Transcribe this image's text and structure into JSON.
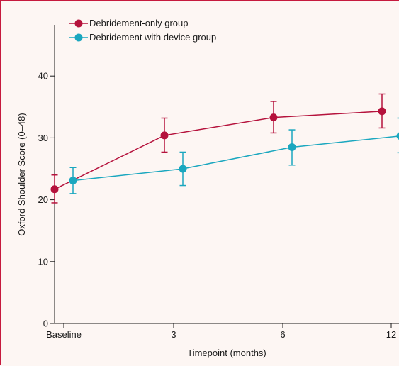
{
  "chart_data": {
    "type": "line",
    "title": "",
    "xlabel": "Timepoint (months)",
    "ylabel": "Oxford Shoulder Score (0–48)",
    "categories": [
      "Baseline",
      "3",
      "6",
      "12"
    ],
    "ylim": [
      0,
      48
    ],
    "yticks": [
      0,
      10,
      20,
      30,
      40
    ],
    "grid": false,
    "legend_position": "top-left",
    "series": [
      {
        "name": "Debridement-only group",
        "color": "#b5123c",
        "values": [
          21.7,
          30.4,
          33.3,
          34.3
        ],
        "error_low": [
          19.5,
          27.7,
          30.8,
          31.6
        ],
        "error_high": [
          24.0,
          33.2,
          35.9,
          37.1
        ]
      },
      {
        "name": "Debridement with device group",
        "color": "#1aa7bf",
        "values": [
          23.1,
          25.0,
          28.5,
          30.3
        ],
        "error_low": [
          21.0,
          22.3,
          25.6,
          27.6
        ],
        "error_high": [
          25.2,
          27.7,
          31.3,
          33.2
        ]
      }
    ]
  }
}
